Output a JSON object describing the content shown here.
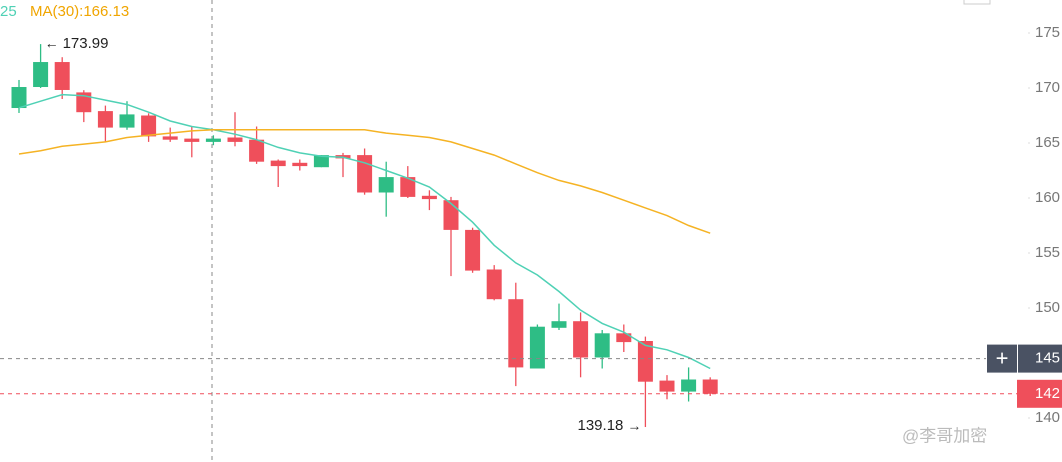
{
  "chart_data": {
    "type": "candlestick",
    "legend": [
      "25",
      "MA(30):166.13"
    ],
    "up_color": "#2ebd85",
    "down_color": "#ef4f5b",
    "open": [
      168.18,
      170.09,
      172.36,
      169.6,
      167.9,
      166.4,
      167.5,
      165.6,
      165.4,
      165.1,
      165.5,
      165.3,
      163.4,
      163.2,
      162.8,
      163.9,
      163.9,
      160.5,
      161.9,
      160.2,
      159.8,
      157.1,
      153.5,
      150.8,
      144.5,
      148.2,
      148.8,
      145.5,
      147.7,
      147.0,
      143.4,
      142.4,
      143.5
    ],
    "high": [
      170.73,
      173.99,
      172.8,
      169.8,
      168.4,
      168.8,
      167.7,
      166.4,
      166.5,
      165.7,
      167.8,
      166.5,
      163.5,
      163.5,
      163.9,
      164.1,
      164.5,
      163.3,
      162.9,
      160.7,
      160.1,
      157.3,
      153.9,
      152.3,
      148.5,
      150.4,
      149.6,
      148.0,
      148.5,
      147.4,
      143.9,
      144.6,
      143.7
    ],
    "low": [
      167.73,
      170.0,
      169.0,
      166.9,
      165.1,
      166.2,
      165.1,
      165.1,
      163.7,
      164.8,
      164.7,
      163.1,
      161.0,
      162.5,
      162.8,
      161.9,
      160.3,
      158.3,
      160.0,
      158.9,
      152.9,
      153.2,
      150.7,
      142.9,
      144.5,
      148.0,
      143.7,
      144.5,
      146.0,
      139.18,
      141.7,
      141.5,
      142.0
    ],
    "close": [
      170.09,
      172.36,
      169.82,
      167.8,
      166.4,
      167.6,
      165.6,
      165.3,
      165.1,
      165.4,
      165.1,
      163.3,
      162.9,
      162.9,
      163.9,
      163.6,
      160.5,
      161.9,
      160.1,
      159.9,
      157.1,
      153.4,
      150.8,
      144.6,
      148.3,
      148.8,
      145.5,
      147.7,
      146.9,
      143.3,
      142.4,
      143.5,
      142.2
    ],
    "ma_lines": [
      {
        "color": "#4fd1b5",
        "values": [
          168.2,
          168.8,
          169.4,
          169.3,
          168.9,
          168.5,
          167.8,
          167,
          166.5,
          166.2,
          165.8,
          165.3,
          164.6,
          164.1,
          163.8,
          163.7,
          163.2,
          162.5,
          161.8,
          161,
          159.5,
          157.8,
          155.7,
          154.1,
          153,
          151.5,
          149.8,
          148.6,
          147.8,
          146.6,
          146.2,
          145.5,
          144.5
        ]
      },
      {
        "color": "#f5b324",
        "values": [
          164,
          164.3,
          164.7,
          164.9,
          165.1,
          165.5,
          165.7,
          165.9,
          166.1,
          166.2,
          166.2,
          166.2,
          166.2,
          166.2,
          166.2,
          166.2,
          166.2,
          165.9,
          165.7,
          165.5,
          165.1,
          164.5,
          163.9,
          163.1,
          162.3,
          161.6,
          161.1,
          160.5,
          159.8,
          159.1,
          158.4,
          157.5,
          156.8
        ]
      }
    ],
    "annotations": [
      173.99,
      139.18
    ],
    "ylim": [
      136,
      178
    ],
    "yticks": [
      140,
      150,
      155,
      160,
      165,
      170,
      175
    ],
    "crosshair": {
      "value": 145.4,
      "label": "145"
    },
    "last_price": {
      "value": 142.2,
      "label": "142"
    },
    "watermark": "@李哥加密"
  }
}
